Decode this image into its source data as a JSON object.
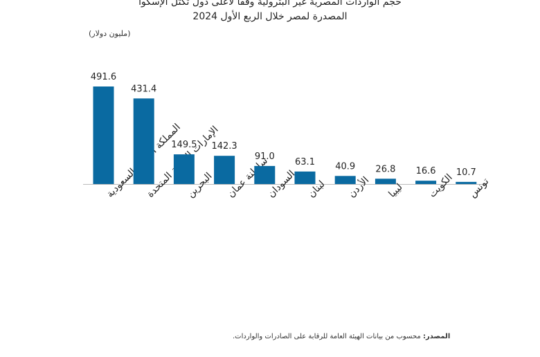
{
  "chart_data": {
    "type": "bar",
    "title": "حجم الواردات المصرية غير البترولية وفقاً لأعلى دول تكتل الإسكوا",
    "subtitle": "المصدرة لمصر خلال الربع الأول 2024",
    "ylabel": "(مليون دولار)",
    "categories": [
      "المملكة العربية السعودية",
      "الإمارات العربية المتحدة",
      "البحرين",
      "سلطنة عمان",
      "السودان",
      "لبنان",
      "الأردن",
      "ليبيا",
      "الكويت",
      "تونس"
    ],
    "values": [
      491.6,
      431.4,
      149.5,
      142.3,
      91.0,
      63.1,
      40.9,
      26.8,
      16.6,
      10.7
    ],
    "value_labels": [
      "491.6",
      "431.4",
      "149.5",
      "142.3",
      "91.0",
      "63.1",
      "40.9",
      "26.8",
      "16.6",
      "10.7"
    ],
    "ylim": [
      0,
      500
    ],
    "grid": false,
    "bar_color": "#0a6aa1"
  },
  "source": {
    "label": "المصدر:",
    "text": "محسوب من بيانات الهيئة العامة للرقابة على الصادرات والواردات."
  }
}
